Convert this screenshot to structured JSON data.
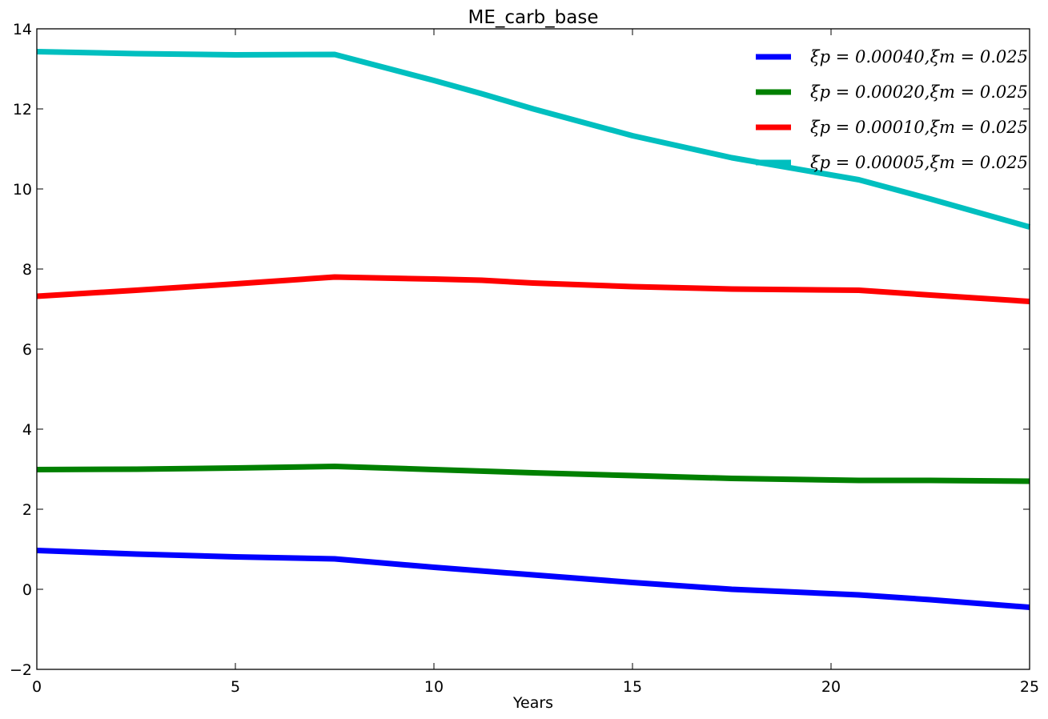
{
  "chart_data": {
    "type": "line",
    "title": "ME_carb_base",
    "xlabel": "Years",
    "ylabel": "",
    "xlim": [
      0,
      25
    ],
    "ylim": [
      -2,
      14
    ],
    "xticks": [
      "0",
      "5",
      "10",
      "15",
      "20",
      "25"
    ],
    "yticks": [
      "−2",
      "0",
      "2",
      "4",
      "6",
      "8",
      "10",
      "12",
      "14"
    ],
    "grid": false,
    "legend_position": "top-right",
    "series": [
      {
        "name": "ξp = 0.00040,ξm = 0.025",
        "color": "#0000ff",
        "x": [
          0,
          2.5,
          5,
          7.5,
          10,
          12.5,
          15,
          17.5,
          20.7,
          22.5,
          25
        ],
        "y": [
          0.97,
          0.88,
          0.81,
          0.76,
          0.55,
          0.36,
          0.17,
          0.0,
          -0.14,
          -0.26,
          -0.45
        ]
      },
      {
        "name": "ξp = 0.00020,ξm = 0.025",
        "color": "#008000",
        "x": [
          0,
          2.5,
          5,
          7.5,
          10,
          12.5,
          15,
          17.5,
          20.7,
          22.5,
          25
        ],
        "y": [
          2.99,
          3.0,
          3.03,
          3.07,
          2.99,
          2.91,
          2.84,
          2.77,
          2.72,
          2.72,
          2.7
        ]
      },
      {
        "name": "ξp = 0.00010,ξm = 0.025",
        "color": "#ff0000",
        "x": [
          0,
          2.5,
          5,
          7.5,
          10,
          11.2,
          12.5,
          15,
          17.5,
          20.7,
          22.5,
          25
        ],
        "y": [
          7.32,
          7.47,
          7.63,
          7.8,
          7.75,
          7.72,
          7.65,
          7.56,
          7.5,
          7.47,
          7.35,
          7.19
        ]
      },
      {
        "name": "ξp = 0.00005,ξm = 0.025",
        "color": "#00bfbf",
        "x": [
          0,
          2.5,
          5,
          7.5,
          10,
          11.2,
          12.5,
          15,
          17.5,
          20.7,
          22.5,
          25
        ],
        "y": [
          13.43,
          13.38,
          13.35,
          13.36,
          12.71,
          12.38,
          12.0,
          11.33,
          10.78,
          10.23,
          9.75,
          9.05
        ]
      }
    ]
  }
}
